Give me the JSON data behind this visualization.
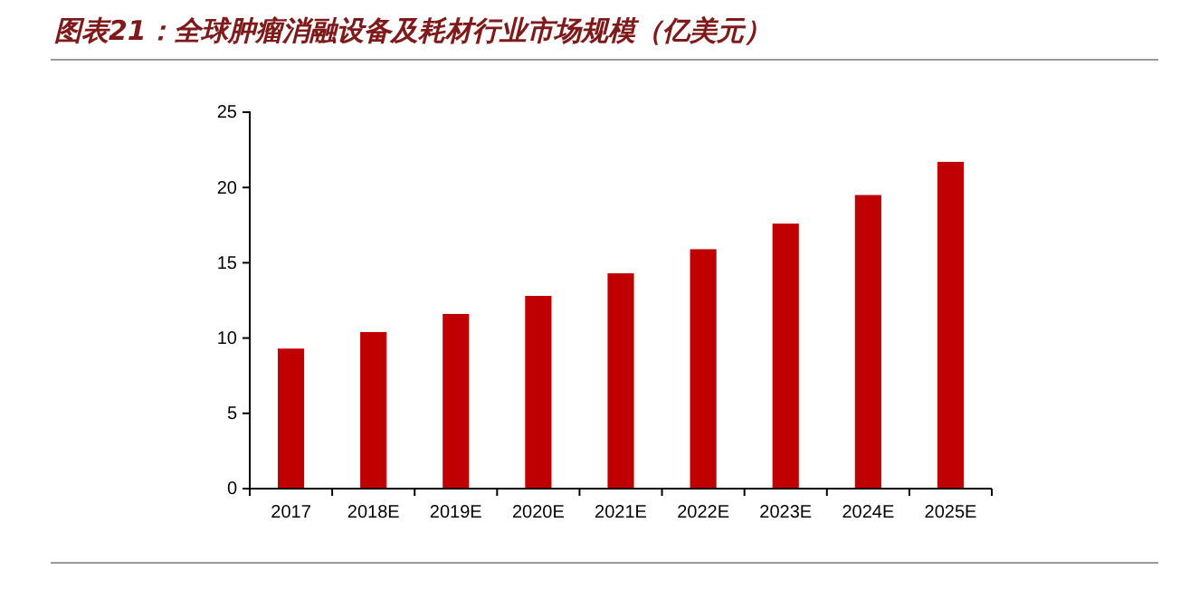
{
  "chart_data": {
    "type": "bar",
    "title": "图表21：全球肿瘤消融设备及耗材行业市场规模（亿美元）",
    "categories": [
      "2017",
      "2018E",
      "2019E",
      "2020E",
      "2021E",
      "2022E",
      "2023E",
      "2024E",
      "2025E"
    ],
    "values": [
      9.3,
      10.4,
      11.6,
      12.8,
      14.3,
      15.9,
      17.6,
      19.5,
      21.7
    ],
    "color": "#c00000",
    "ylim": [
      0,
      25
    ],
    "yticks": [
      0,
      5,
      10,
      15,
      20,
      25
    ]
  }
}
